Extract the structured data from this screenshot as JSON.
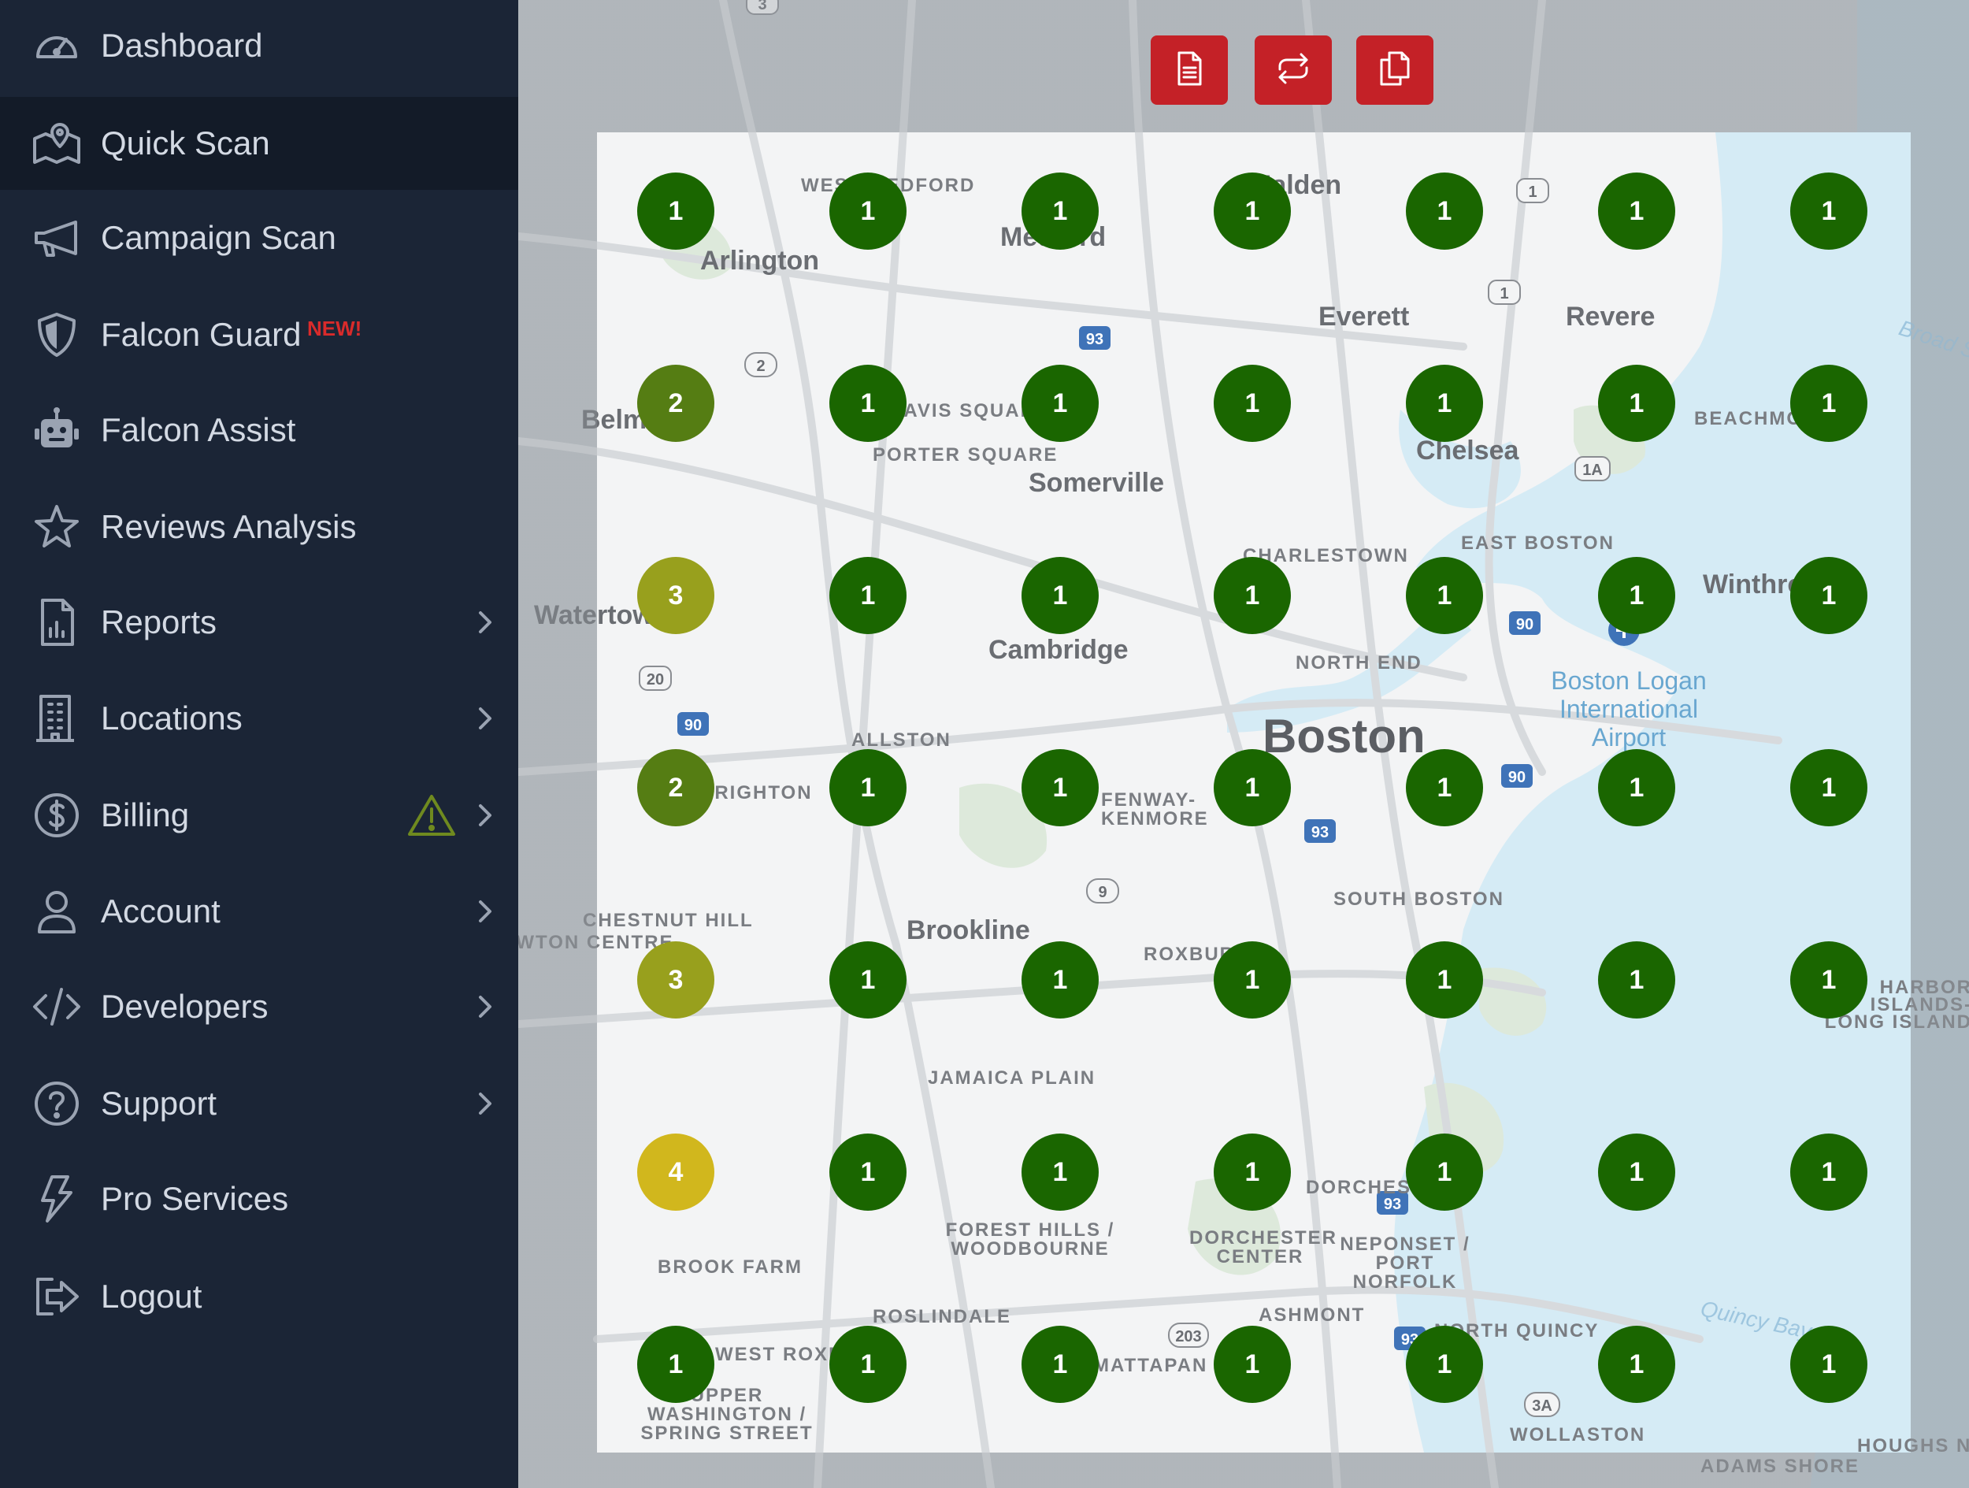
{
  "sidebar": {
    "items": [
      {
        "label": "Dashboard",
        "icon": "dashboard-icon",
        "chevron": false,
        "active": false
      },
      {
        "label": "Quick Scan",
        "icon": "map-pin-icon",
        "chevron": false,
        "active": true
      },
      {
        "label": "Campaign Scan",
        "icon": "megaphone-icon",
        "chevron": false,
        "active": false
      },
      {
        "label": "Falcon Guard",
        "icon": "shield-icon",
        "chevron": false,
        "active": false,
        "badge": "NEW!"
      },
      {
        "label": "Falcon Assist",
        "icon": "robot-icon",
        "chevron": false,
        "active": false
      },
      {
        "label": "Reviews Analysis",
        "icon": "star-icon",
        "chevron": false,
        "active": false
      },
      {
        "label": "Reports",
        "icon": "report-icon",
        "chevron": true,
        "active": false
      },
      {
        "label": "Locations",
        "icon": "building-icon",
        "chevron": true,
        "active": false
      },
      {
        "label": "Billing",
        "icon": "dollar-icon",
        "chevron": true,
        "active": false,
        "warning": true
      },
      {
        "label": "Account",
        "icon": "user-icon",
        "chevron": true,
        "active": false
      },
      {
        "label": "Developers",
        "icon": "code-icon",
        "chevron": true,
        "active": false
      },
      {
        "label": "Support",
        "icon": "help-icon",
        "chevron": true,
        "active": false
      },
      {
        "label": "Pro Services",
        "icon": "lightning-icon",
        "chevron": false,
        "active": false
      },
      {
        "label": "Logout",
        "icon": "logout-icon",
        "chevron": false,
        "active": false
      }
    ]
  },
  "toolbar": {
    "buttons": [
      {
        "name": "report-button",
        "icon": "document-icon"
      },
      {
        "name": "rescan-button",
        "icon": "repeat-icon"
      },
      {
        "name": "copy-button",
        "icon": "copy-icon"
      }
    ]
  },
  "colors": {
    "accent": "#c42127",
    "rank_1": "#1a6600",
    "rank_2": "#557d13",
    "rank_3": "#98a01d",
    "rank_4": "#d1b71d",
    "sidebar_bg": "#1b2536",
    "sidebar_active": "#131b28",
    "badge": "#d92b2b"
  },
  "map": {
    "labels": [
      {
        "text": "Arlington",
        "kind": "city"
      },
      {
        "text": "WEST MEDFORD",
        "kind": "small"
      },
      {
        "text": "Medford",
        "kind": "city"
      },
      {
        "text": "Malden",
        "kind": "city"
      },
      {
        "text": "Everett",
        "kind": "city"
      },
      {
        "text": "Revere",
        "kind": "city"
      },
      {
        "text": "Belmont",
        "kind": "city"
      },
      {
        "text": "DAVIS SQUARE",
        "kind": "small"
      },
      {
        "text": "PORTER SQUARE",
        "kind": "small"
      },
      {
        "text": "Somerville",
        "kind": "city"
      },
      {
        "text": "Chelsea",
        "kind": "city"
      },
      {
        "text": "BEACHMONT",
        "kind": "small"
      },
      {
        "text": "CHARLESTOWN",
        "kind": "small"
      },
      {
        "text": "EAST BOSTON",
        "kind": "small"
      },
      {
        "text": "Watertown",
        "kind": "city"
      },
      {
        "text": "Winthrop",
        "kind": "city"
      },
      {
        "text": "Cambridge",
        "kind": "city"
      },
      {
        "text": "NORTH END",
        "kind": "small"
      },
      {
        "text": "Boston Logan International Airport",
        "kind": "airport"
      },
      {
        "text": "ALLSTON",
        "kind": "small"
      },
      {
        "text": "Boston",
        "kind": "big"
      },
      {
        "text": "BRIGHTON",
        "kind": "small"
      },
      {
        "text": "FENWAY-KENMORE",
        "kind": "small"
      },
      {
        "text": "SOUTH BOSTON",
        "kind": "small"
      },
      {
        "text": "CHESTNUT HILL",
        "kind": "small"
      },
      {
        "text": "NEWTON CENTRE",
        "kind": "small"
      },
      {
        "text": "Brookline",
        "kind": "city"
      },
      {
        "text": "ROXBURY",
        "kind": "small"
      },
      {
        "text": "HARBOR ISLANDS-LONG ISLAND",
        "kind": "small"
      },
      {
        "text": "JAMAICA PLAIN",
        "kind": "small"
      },
      {
        "text": "DORCHESTER",
        "kind": "small"
      },
      {
        "text": "FOREST HILLS / WOODBOURNE",
        "kind": "small"
      },
      {
        "text": "DORCHESTER CENTER",
        "kind": "small"
      },
      {
        "text": "NEPONSET / PORT NORFOLK",
        "kind": "small"
      },
      {
        "text": "BROOK FARM",
        "kind": "small"
      },
      {
        "text": "ROSLINDALE",
        "kind": "small"
      },
      {
        "text": "ASHMONT",
        "kind": "small"
      },
      {
        "text": "NORTH QUINCY",
        "kind": "small"
      },
      {
        "text": "WEST ROXBURY",
        "kind": "small"
      },
      {
        "text": "MATTAPAN",
        "kind": "small"
      },
      {
        "text": "UPPER WASHINGTON / SPRING STREET",
        "kind": "small"
      },
      {
        "text": "WOLLASTON",
        "kind": "small"
      },
      {
        "text": "ADAMS SHORE",
        "kind": "small"
      },
      {
        "text": "HOUGHS NECK",
        "kind": "small"
      },
      {
        "text": "Quincy Bay",
        "kind": "water"
      },
      {
        "text": "Broad Sound",
        "kind": "water"
      }
    ],
    "route_shields": [
      "3",
      "1",
      "1",
      "2",
      "93",
      "1A",
      "20",
      "90",
      "90",
      "90",
      "93",
      "9",
      "93",
      "203",
      "93",
      "3A"
    ]
  },
  "grid": {
    "rows": 7,
    "cols": 7,
    "ranks": [
      [
        1,
        1,
        1,
        1,
        1,
        1,
        1
      ],
      [
        2,
        1,
        1,
        1,
        1,
        1,
        1
      ],
      [
        3,
        1,
        1,
        1,
        1,
        1,
        1
      ],
      [
        2,
        1,
        1,
        1,
        1,
        1,
        1
      ],
      [
        3,
        1,
        1,
        1,
        1,
        1,
        1
      ],
      [
        4,
        1,
        1,
        1,
        1,
        1,
        1
      ],
      [
        1,
        1,
        1,
        1,
        1,
        1,
        1
      ]
    ]
  }
}
